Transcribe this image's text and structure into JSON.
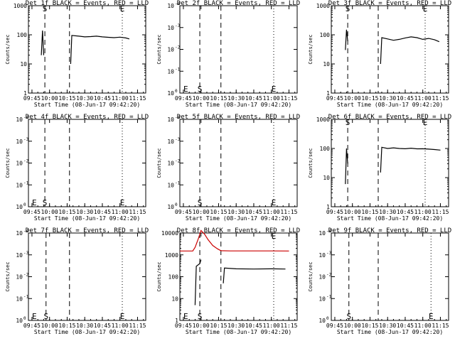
{
  "figure": {
    "colors": {
      "events": "#000000",
      "lld": "#cc0000",
      "background": "#ffffff"
    },
    "x_tick_labels": [
      "09:45",
      "10:00",
      "10:15",
      "10:30",
      "10:45",
      "11:00",
      "11:15"
    ],
    "x_label": "Start Time (08-Jun-17 09:42:20)",
    "y_label": "Counts/sec",
    "log_tick_labels": [
      "1",
      "10",
      "100",
      "1000",
      "10000"
    ],
    "exp_tick_labels": [
      "10",
      "10",
      "10",
      "10",
      "10"
    ],
    "exp_tick_exponents": [
      "0",
      "-1",
      "-2",
      "-3",
      "-4"
    ]
  },
  "chart_data": [
    {
      "type": "line",
      "title": "Det 1f BLACK = Events, RED = LLD",
      "x_range": [
        "09:42",
        "11:22"
      ],
      "y_scale": "log",
      "ylim": [
        1,
        1000
      ],
      "y_ticks": [
        "1",
        "10",
        "100",
        "1000"
      ],
      "markers": [
        {
          "label": "S",
          "time": "09:56",
          "level": 1000,
          "line": "dashed"
        },
        {
          "label": "E",
          "time": "11:02",
          "level": 1000,
          "line": "dotted"
        }
      ],
      "extra_dashed_lines": [
        "10:17"
      ],
      "series": [
        {
          "color": "#000000",
          "values": [
            [
              "09:53",
              20
            ],
            [
              "09:54",
              140
            ],
            [
              "09:55",
              20
            ]
          ]
        },
        {
          "color": "#000000",
          "values": [
            [
              "10:18",
              10
            ],
            [
              "10:19",
              95
            ],
            [
              "10:25",
              90
            ],
            [
              "10:30",
              85
            ],
            [
              "10:35",
              87
            ],
            [
              "10:40",
              90
            ],
            [
              "10:45",
              85
            ],
            [
              "10:50",
              82
            ],
            [
              "10:55",
              80
            ],
            [
              "11:00",
              83
            ],
            [
              "11:05",
              78
            ],
            [
              "11:08",
              72
            ]
          ]
        }
      ]
    },
    {
      "type": "line",
      "title": "Det 2f BLACK = Events, RED = LLD",
      "x_range": [
        "09:42",
        "11:22"
      ],
      "y_scale": "exp",
      "ylim": [
        0,
        4
      ],
      "y_ticks": [
        0,
        1,
        2,
        3,
        4
      ],
      "markers": [
        {
          "label": "E",
          "time": "09:47",
          "level": 0,
          "line": "none"
        },
        {
          "label": "S",
          "time": "09:59",
          "level": 0,
          "line": "dashed"
        },
        {
          "label": "E",
          "time": "11:02",
          "level": 0,
          "line": "dotted"
        }
      ],
      "extra_dashed_lines": [
        "10:17"
      ],
      "series": []
    },
    {
      "type": "line",
      "title": "Det 3f BLACK = Events, RED = LLD",
      "x_range": [
        "09:42",
        "11:22"
      ],
      "y_scale": "log",
      "ylim": [
        1,
        1000
      ],
      "y_ticks": [
        "1",
        "10",
        "100",
        "1000"
      ],
      "markers": [
        {
          "label": "S",
          "time": "09:56",
          "level": 1000,
          "line": "dashed"
        },
        {
          "label": "E",
          "time": "11:02",
          "level": 1000,
          "line": "dotted"
        }
      ],
      "extra_dashed_lines": [
        "10:22"
      ],
      "series": [
        {
          "color": "#000000",
          "values": [
            [
              "09:54",
              30
            ],
            [
              "09:55",
              150
            ],
            [
              "09:56",
              60
            ]
          ]
        },
        {
          "color": "#000000",
          "values": [
            [
              "10:24",
              10
            ],
            [
              "10:25",
              80
            ],
            [
              "10:30",
              72
            ],
            [
              "10:35",
              65
            ],
            [
              "10:40",
              70
            ],
            [
              "10:45",
              78
            ],
            [
              "10:50",
              85
            ],
            [
              "10:55",
              80
            ],
            [
              "11:00",
              70
            ],
            [
              "11:05",
              75
            ],
            [
              "11:10",
              68
            ],
            [
              "11:14",
              58
            ]
          ]
        }
      ]
    },
    {
      "type": "line",
      "title": "Det 4f BLACK = Events, RED = LLD",
      "x_range": [
        "09:42",
        "11:22"
      ],
      "y_scale": "exp",
      "ylim": [
        0,
        4
      ],
      "y_ticks": [
        0,
        1,
        2,
        3,
        4
      ],
      "markers": [
        {
          "label": "E",
          "time": "09:47",
          "level": 0,
          "line": "none"
        },
        {
          "label": "S",
          "time": "09:56",
          "level": 0,
          "line": "dashed"
        },
        {
          "label": "E",
          "time": "11:02",
          "level": 0,
          "line": "dotted"
        }
      ],
      "extra_dashed_lines": [
        "10:17"
      ],
      "series": []
    },
    {
      "type": "line",
      "title": "Det 5f BLACK = Events, RED = LLD",
      "x_range": [
        "09:42",
        "11:22"
      ],
      "y_scale": "exp",
      "ylim": [
        0,
        4
      ],
      "y_ticks": [
        0,
        1,
        2,
        3,
        4
      ],
      "markers": [
        {
          "label": "S",
          "time": "09:59",
          "level": 0,
          "line": "dashed"
        },
        {
          "label": "E",
          "time": "11:02",
          "level": 0,
          "line": "dotted"
        }
      ],
      "extra_dashed_lines": [
        "10:17"
      ],
      "series": []
    },
    {
      "type": "line",
      "title": "Det 6f BLACK = Events, RED = LLD",
      "x_range": [
        "09:42",
        "11:22"
      ],
      "y_scale": "log",
      "ylim": [
        1,
        1000
      ],
      "y_ticks": [
        "1",
        "10",
        "100",
        "1000"
      ],
      "markers": [
        {
          "label": "S",
          "time": "09:56",
          "level": 1000,
          "line": "dashed"
        },
        {
          "label": "E",
          "time": "11:02",
          "level": 1000,
          "line": "dotted"
        }
      ],
      "extra_dashed_lines": [
        "10:22"
      ],
      "series": [
        {
          "color": "#000000",
          "values": [
            [
              "09:54",
              6
            ],
            [
              "09:55",
              100
            ],
            [
              "09:56",
              30
            ]
          ]
        },
        {
          "color": "#000000",
          "values": [
            [
              "10:24",
              15
            ],
            [
              "10:25",
              110
            ],
            [
              "10:30",
              100
            ],
            [
              "10:35",
              105
            ],
            [
              "10:40",
              100
            ],
            [
              "10:45",
              98
            ],
            [
              "10:50",
              102
            ],
            [
              "10:55",
              97
            ],
            [
              "11:00",
              98
            ],
            [
              "11:05",
              95
            ],
            [
              "11:10",
              92
            ],
            [
              "11:15",
              88
            ]
          ]
        }
      ]
    },
    {
      "type": "line",
      "title": "Det 7f BLACK = Events, RED = LLD",
      "x_range": [
        "09:42",
        "11:22"
      ],
      "y_scale": "exp",
      "ylim": [
        0,
        4
      ],
      "y_ticks": [
        0,
        1,
        2,
        3,
        4
      ],
      "markers": [
        {
          "label": "E",
          "time": "09:47",
          "level": 0,
          "line": "none"
        },
        {
          "label": "S",
          "time": "09:57",
          "level": 0,
          "line": "dashed"
        },
        {
          "label": "E",
          "time": "11:02",
          "level": 0,
          "line": "dotted"
        }
      ],
      "extra_dashed_lines": [
        "10:17"
      ],
      "series": []
    },
    {
      "type": "line",
      "title": "Det 8f BLACK = Events, RED = LLD",
      "x_range": [
        "09:42",
        "11:22"
      ],
      "y_scale": "log",
      "ylim": [
        1,
        10000
      ],
      "y_ticks": [
        "1",
        "10",
        "100",
        "1000",
        "10000"
      ],
      "markers": [
        {
          "label": "E",
          "time": "09:47",
          "level": 1,
          "line": "none"
        },
        {
          "label": "S",
          "time": "09:59",
          "level": 1,
          "line": "dashed"
        },
        {
          "label": "E",
          "time": "11:02",
          "level": 10000,
          "line": "dotted"
        }
      ],
      "extra_dashed_lines": [
        "10:17"
      ],
      "series": [
        {
          "color": "#cc0000",
          "name": "LLD",
          "values": [
            [
              "09:42",
              1500
            ],
            [
              "09:53",
              1500
            ],
            [
              "09:55",
              2200
            ],
            [
              "09:58",
              6000
            ],
            [
              "10:00",
              13000
            ],
            [
              "10:03",
              9000
            ],
            [
              "10:06",
              5000
            ],
            [
              "10:10",
              2700
            ],
            [
              "10:14",
              1900
            ],
            [
              "10:17",
              1550
            ],
            [
              "10:25",
              1520
            ],
            [
              "10:40",
              1510
            ],
            [
              "11:00",
              1510
            ],
            [
              "11:15",
              1500
            ]
          ]
        },
        {
          "color": "#000000",
          "values": [
            [
              "09:55",
              5
            ],
            [
              "09:56",
              300
            ],
            [
              "09:59",
              400
            ],
            [
              "10:00",
              600
            ]
          ]
        },
        {
          "color": "#000000",
          "values": [
            [
              "10:19",
              50
            ],
            [
              "10:20",
              250
            ],
            [
              "10:30",
              230
            ],
            [
              "10:45",
              225
            ],
            [
              "11:00",
              230
            ],
            [
              "11:12",
              225
            ]
          ]
        }
      ]
    },
    {
      "type": "line",
      "title": "Det 9f BLACK = Events, RED = LLD",
      "x_range": [
        "09:42",
        "11:22"
      ],
      "y_scale": "exp",
      "ylim": [
        0,
        4
      ],
      "y_ticks": [
        0,
        1,
        2,
        3,
        4
      ],
      "markers": [
        {
          "label": "S",
          "time": "09:57",
          "level": 0,
          "line": "dashed"
        },
        {
          "label": "E",
          "time": "11:07",
          "level": 0,
          "line": "dotted"
        }
      ],
      "extra_dashed_lines": [
        "10:22"
      ],
      "series": []
    }
  ]
}
